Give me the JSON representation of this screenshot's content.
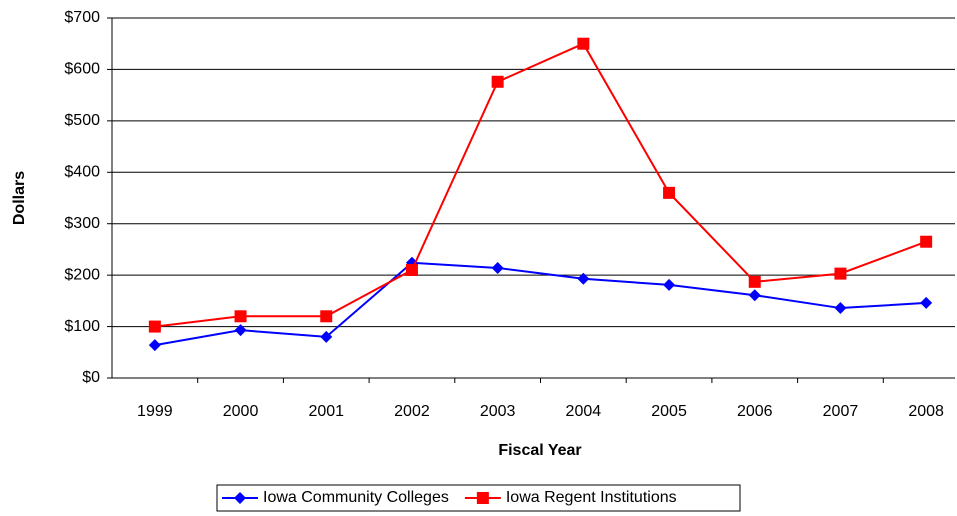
{
  "chart_data": {
    "type": "line",
    "xlabel": "Fiscal Year",
    "ylabel": "Dollars",
    "categories": [
      "1999",
      "2000",
      "2001",
      "2002",
      "2003",
      "2004",
      "2005",
      "2006",
      "2007",
      "2008"
    ],
    "series": [
      {
        "name": "Iowa Community Colleges",
        "color": "#0000ff",
        "marker": "diamond",
        "values": [
          64,
          93,
          80,
          224,
          214,
          193,
          181,
          161,
          136,
          146
        ]
      },
      {
        "name": "Iowa Regent Institutions",
        "color": "#ff0000",
        "marker": "square",
        "values": [
          100,
          120,
          120,
          210,
          576,
          650,
          360,
          187,
          203,
          265
        ]
      }
    ],
    "ylim": [
      0,
      700
    ],
    "yticks": [
      {
        "value": 0,
        "label": "$0"
      },
      {
        "value": 100,
        "label": "$100"
      },
      {
        "value": 200,
        "label": "$200"
      },
      {
        "value": 300,
        "label": "$300"
      },
      {
        "value": 400,
        "label": "$400"
      },
      {
        "value": 500,
        "label": "$500"
      },
      {
        "value": 600,
        "label": "$600"
      },
      {
        "value": 700,
        "label": "$700"
      }
    ],
    "grid": true,
    "legend": "bottom"
  }
}
